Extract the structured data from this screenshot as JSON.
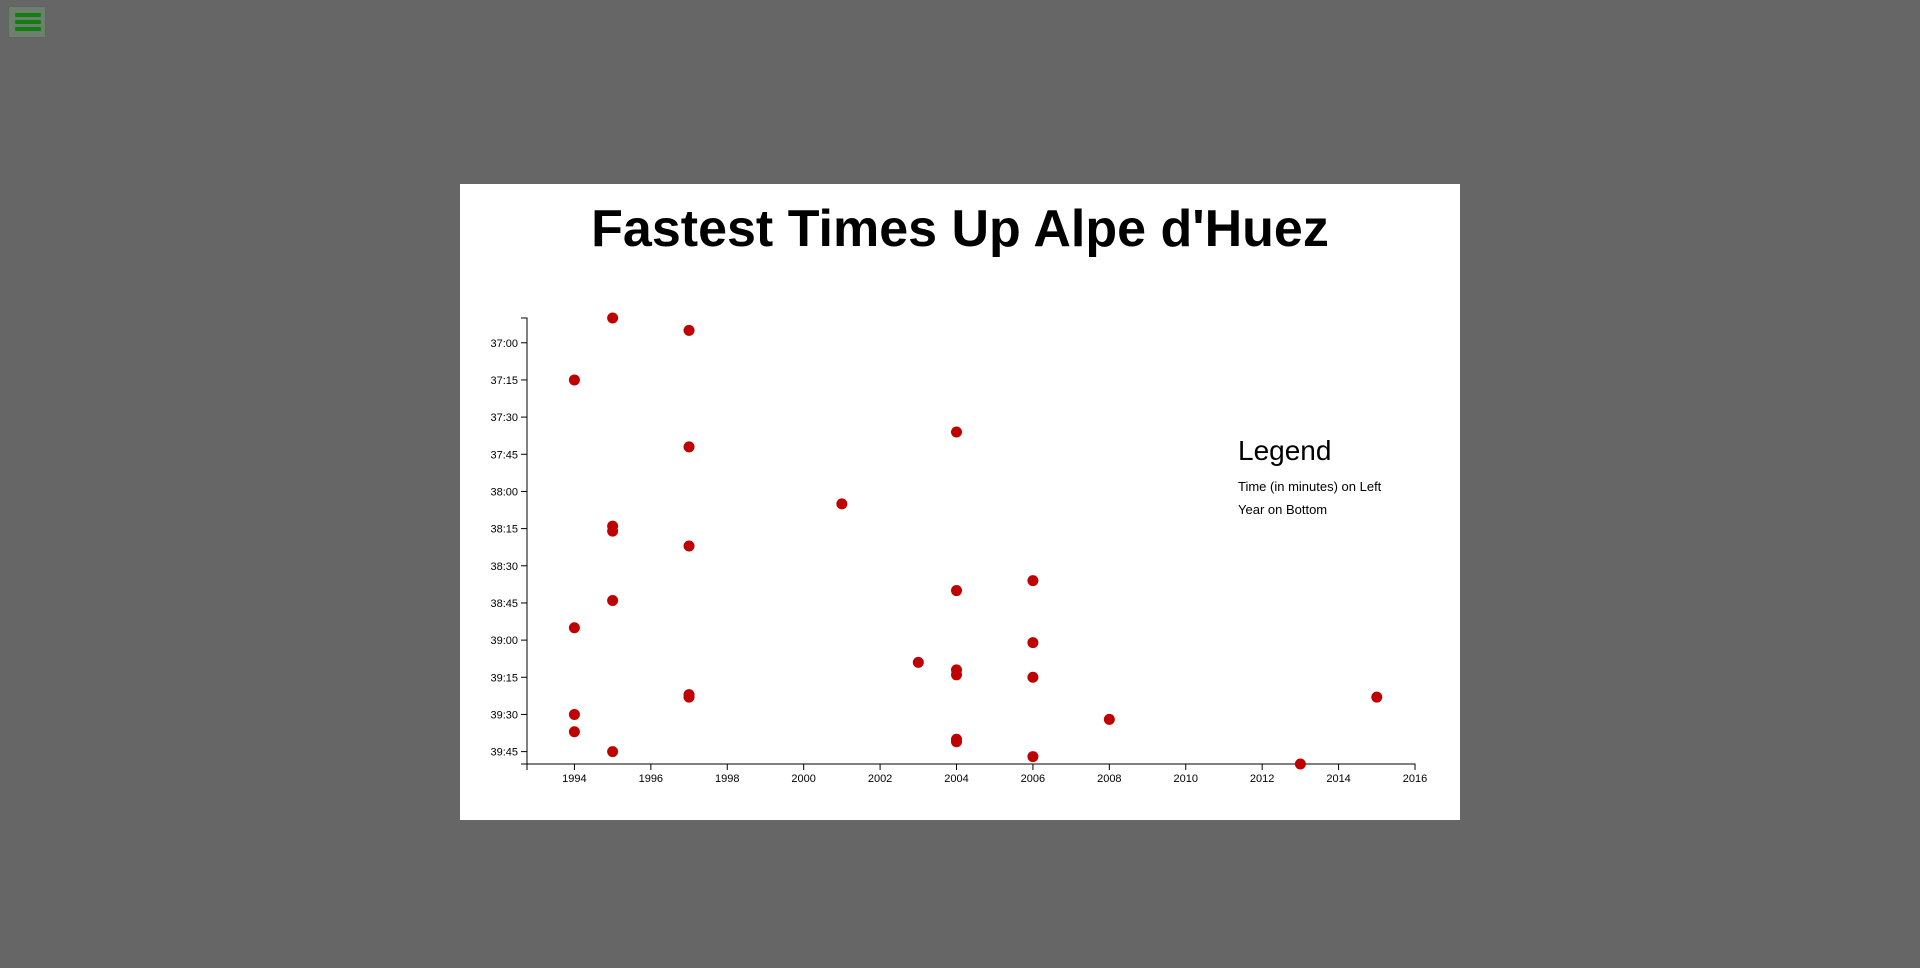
{
  "menu": {
    "icon": "hamburger-menu-icon",
    "color": "#0f7f0f"
  },
  "chart_data": {
    "type": "scatter",
    "title": "Fastest Times Up Alpe d'Huez",
    "xlabel": "",
    "ylabel": "",
    "xlim": [
      1992,
      2016
    ],
    "ylim_seconds": [
      2210,
      2390
    ],
    "x_ticks": [
      1994,
      1996,
      1998,
      2000,
      2002,
      2004,
      2006,
      2008,
      2010,
      2012,
      2014,
      2016
    ],
    "y_ticks": [
      "37:00",
      "37:15",
      "37:30",
      "37:45",
      "38:00",
      "38:15",
      "38:30",
      "38:45",
      "39:00",
      "39:15",
      "39:30",
      "39:45"
    ],
    "y_inverted": true,
    "grid": false,
    "point_color": "#c00000",
    "legend": {
      "title": "Legend",
      "lines": [
        "Time (in minutes) on Left",
        "Year on Bottom"
      ],
      "position": "right"
    },
    "points": [
      {
        "year": 1995,
        "time": "36:50"
      },
      {
        "year": 1997,
        "time": "36:55"
      },
      {
        "year": 1994,
        "time": "37:15"
      },
      {
        "year": 2004,
        "time": "37:36"
      },
      {
        "year": 1997,
        "time": "37:42"
      },
      {
        "year": 2001,
        "time": "38:05"
      },
      {
        "year": 1995,
        "time": "38:14"
      },
      {
        "year": 1995,
        "time": "38:16"
      },
      {
        "year": 1997,
        "time": "38:22"
      },
      {
        "year": 2006,
        "time": "38:36"
      },
      {
        "year": 2004,
        "time": "38:40"
      },
      {
        "year": 1995,
        "time": "38:44"
      },
      {
        "year": 1994,
        "time": "38:55"
      },
      {
        "year": 2006,
        "time": "39:01"
      },
      {
        "year": 2003,
        "time": "39:09"
      },
      {
        "year": 2004,
        "time": "39:12"
      },
      {
        "year": 2004,
        "time": "39:14"
      },
      {
        "year": 2006,
        "time": "39:15"
      },
      {
        "year": 1997,
        "time": "39:22"
      },
      {
        "year": 1997,
        "time": "39:23"
      },
      {
        "year": 2015,
        "time": "39:23"
      },
      {
        "year": 1994,
        "time": "39:30"
      },
      {
        "year": 2008,
        "time": "39:32"
      },
      {
        "year": 1994,
        "time": "39:37"
      },
      {
        "year": 2004,
        "time": "39:40"
      },
      {
        "year": 2004,
        "time": "39:41"
      },
      {
        "year": 1995,
        "time": "39:45"
      },
      {
        "year": 2006,
        "time": "39:47"
      },
      {
        "year": 2013,
        "time": "39:50"
      }
    ]
  }
}
